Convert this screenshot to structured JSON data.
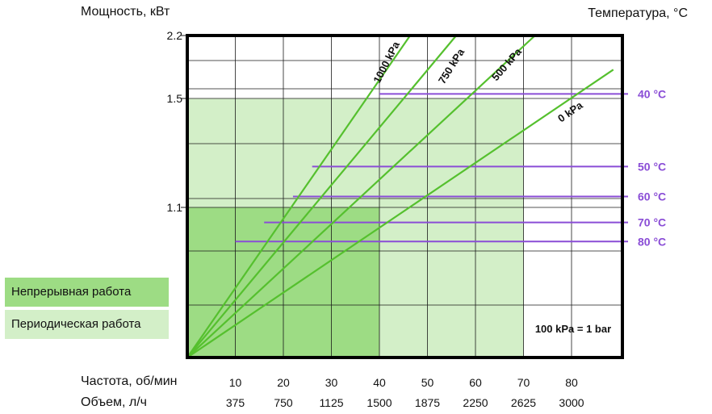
{
  "chart_data": {
    "type": "line",
    "ylabel": "Мощность, кВт",
    "y2label": "Температура, °C",
    "y_ticks": [
      "2.2",
      "1.5",
      "1.1"
    ],
    "x_row1_label": "Частота, об/мин",
    "x_row1": [
      "10",
      "20",
      "30",
      "40",
      "50",
      "60",
      "70",
      "80"
    ],
    "x_row2_label": "Объем, л/ч",
    "x_row2": [
      "375",
      "750",
      "1125",
      "1500",
      "1875",
      "2250",
      "2625",
      "3000"
    ],
    "series": [
      {
        "name": "1000 kPa",
        "x": [
          0,
          46.4
        ],
        "y": [
          0,
          2.2
        ]
      },
      {
        "name": "750 kPa",
        "x": [
          0,
          56.0
        ],
        "y": [
          0,
          2.2
        ]
      },
      {
        "name": "500 kPa",
        "x": [
          0,
          72.4
        ],
        "y": [
          0,
          2.2
        ]
      },
      {
        "name": "0 kPa",
        "x": [
          0,
          88.7
        ],
        "y": [
          0,
          1.82
        ]
      }
    ],
    "temperature_lines": [
      {
        "label": "40 °C",
        "y": 1.55,
        "x_start": 40
      },
      {
        "label": "50 °C",
        "y": 1.25,
        "x_start": 26
      },
      {
        "label": "60 °C",
        "y": 1.14,
        "x_start": 22
      },
      {
        "label": "70 °C",
        "y": 0.99,
        "x_start": 16
      },
      {
        "label": "80 °C",
        "y": 0.85,
        "x_start": 10
      }
    ],
    "regions": [
      {
        "name": "Непрерывная работа",
        "x": [
          0,
          40
        ],
        "y": [
          0,
          1.1
        ],
        "color": "#9ddc84"
      },
      {
        "name": "Периодическая работа",
        "x": [
          0,
          70
        ],
        "y": [
          0,
          1.5
        ],
        "color": "#d3efc8"
      }
    ],
    "note": "100 kPa = 1 bar",
    "colors": {
      "lines": "#55c02e",
      "temperature": "#8a4dd6",
      "grid": "#1a1a1a",
      "border": "#000000"
    }
  },
  "legend": {
    "continuous": "Непрерывная работа",
    "periodic": "Периодическая работа"
  }
}
